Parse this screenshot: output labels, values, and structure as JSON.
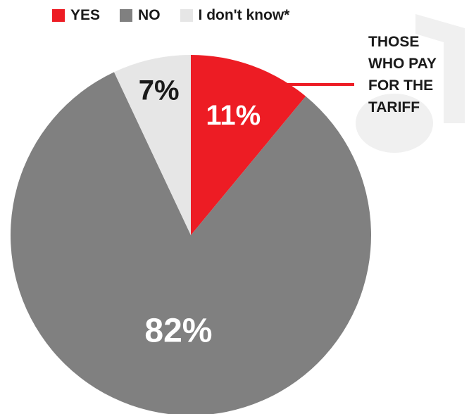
{
  "chart_data": {
    "type": "pie",
    "categories": [
      "YES",
      "NO",
      "I don't know*"
    ],
    "values": [
      11,
      82,
      7
    ],
    "data_labels": [
      "11%",
      "82%",
      "7%"
    ],
    "colors": [
      "#ed1c24",
      "#808080",
      "#e6e6e6"
    ],
    "legend_placement": "top",
    "annotation": {
      "lines": [
        "THOSE",
        "WHO PAY",
        "FOR THE",
        "TARIFF"
      ],
      "points_to": "YES",
      "color": "#ed1c24"
    }
  }
}
